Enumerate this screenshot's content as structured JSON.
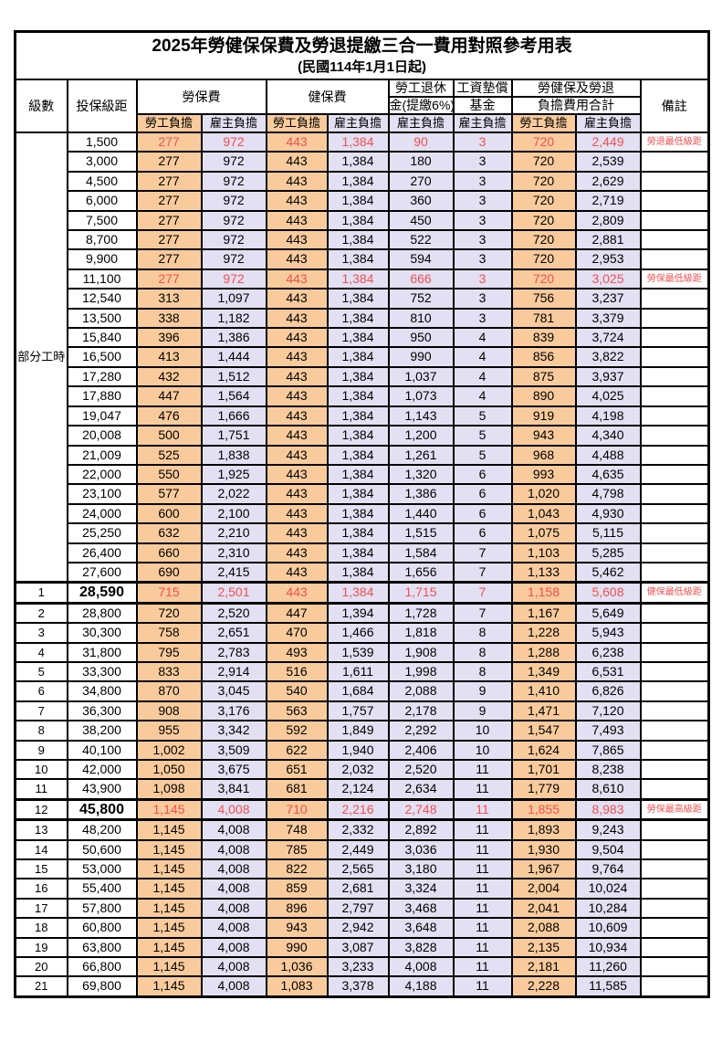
{
  "colors": {
    "employee_bg": "#F9CB9C",
    "employer_bg": "#E2E0F2",
    "highlight_red": "#F25050",
    "border": "#000000"
  },
  "title": {
    "line1": "2025年勞健保保費及勞退提繳三合一費用對照參考用表",
    "line2": "(民國114年1月1日起)"
  },
  "header": {
    "level": "級數",
    "bracket": "投保級距",
    "labor_ins": "勞保費",
    "health_ins": "健保費",
    "pension_line1": "勞工退休",
    "pension_line2": "金(提繳6%)",
    "wage_fund_line1": "工資墊償",
    "wage_fund_line2": "基金",
    "total_line1": "勞健保及勞退",
    "total_line2": "負擔費用合計",
    "remark": "備註",
    "employee": "勞工負擔",
    "employer": "雇主負擔"
  },
  "table": {
    "group": {
      "label": "部分工時",
      "span": 23
    },
    "columns": [
      "level",
      "bracket",
      "labor_employee",
      "labor_employer",
      "health_employee",
      "health_employer",
      "pension_employer",
      "wage_fund_employer",
      "total_employee",
      "total_employer",
      "remark"
    ],
    "rows": [
      {
        "level": "",
        "bracket": "1,500",
        "values": [
          "277",
          "972",
          "443",
          "1,384",
          "90",
          "3",
          "720",
          "2,449"
        ],
        "remark": "勞退最低級距",
        "red": true,
        "emph": false
      },
      {
        "level": "",
        "bracket": "3,000",
        "values": [
          "277",
          "972",
          "443",
          "1,384",
          "180",
          "3",
          "720",
          "2,539"
        ],
        "remark": "",
        "red": false,
        "emph": false
      },
      {
        "level": "",
        "bracket": "4,500",
        "values": [
          "277",
          "972",
          "443",
          "1,384",
          "270",
          "3",
          "720",
          "2,629"
        ],
        "remark": "",
        "red": false,
        "emph": false
      },
      {
        "level": "",
        "bracket": "6,000",
        "values": [
          "277",
          "972",
          "443",
          "1,384",
          "360",
          "3",
          "720",
          "2,719"
        ],
        "remark": "",
        "red": false,
        "emph": false
      },
      {
        "level": "",
        "bracket": "7,500",
        "values": [
          "277",
          "972",
          "443",
          "1,384",
          "450",
          "3",
          "720",
          "2,809"
        ],
        "remark": "",
        "red": false,
        "emph": false
      },
      {
        "level": "",
        "bracket": "8,700",
        "values": [
          "277",
          "972",
          "443",
          "1,384",
          "522",
          "3",
          "720",
          "2,881"
        ],
        "remark": "",
        "red": false,
        "emph": false
      },
      {
        "level": "",
        "bracket": "9,900",
        "values": [
          "277",
          "972",
          "443",
          "1,384",
          "594",
          "3",
          "720",
          "2,953"
        ],
        "remark": "",
        "red": false,
        "emph": false
      },
      {
        "level": "",
        "bracket": "11,100",
        "values": [
          "277",
          "972",
          "443",
          "1,384",
          "666",
          "3",
          "720",
          "3,025"
        ],
        "remark": "勞保最低級距",
        "red": true,
        "emph": false
      },
      {
        "level": "",
        "bracket": "12,540",
        "values": [
          "313",
          "1,097",
          "443",
          "1,384",
          "752",
          "3",
          "756",
          "3,237"
        ],
        "remark": "",
        "red": false,
        "emph": false
      },
      {
        "level": "",
        "bracket": "13,500",
        "values": [
          "338",
          "1,182",
          "443",
          "1,384",
          "810",
          "3",
          "781",
          "3,379"
        ],
        "remark": "",
        "red": false,
        "emph": false
      },
      {
        "level": "",
        "bracket": "15,840",
        "values": [
          "396",
          "1,386",
          "443",
          "1,384",
          "950",
          "4",
          "839",
          "3,724"
        ],
        "remark": "",
        "red": false,
        "emph": false
      },
      {
        "level": "",
        "bracket": "16,500",
        "values": [
          "413",
          "1,444",
          "443",
          "1,384",
          "990",
          "4",
          "856",
          "3,822"
        ],
        "remark": "",
        "red": false,
        "emph": false
      },
      {
        "level": "",
        "bracket": "17,280",
        "values": [
          "432",
          "1,512",
          "443",
          "1,384",
          "1,037",
          "4",
          "875",
          "3,937"
        ],
        "remark": "",
        "red": false,
        "emph": false
      },
      {
        "level": "",
        "bracket": "17,880",
        "values": [
          "447",
          "1,564",
          "443",
          "1,384",
          "1,073",
          "4",
          "890",
          "4,025"
        ],
        "remark": "",
        "red": false,
        "emph": false
      },
      {
        "level": "",
        "bracket": "19,047",
        "values": [
          "476",
          "1,666",
          "443",
          "1,384",
          "1,143",
          "5",
          "919",
          "4,198"
        ],
        "remark": "",
        "red": false,
        "emph": false
      },
      {
        "level": "",
        "bracket": "20,008",
        "values": [
          "500",
          "1,751",
          "443",
          "1,384",
          "1,200",
          "5",
          "943",
          "4,340"
        ],
        "remark": "",
        "red": false,
        "emph": false
      },
      {
        "level": "",
        "bracket": "21,009",
        "values": [
          "525",
          "1,838",
          "443",
          "1,384",
          "1,261",
          "5",
          "968",
          "4,488"
        ],
        "remark": "",
        "red": false,
        "emph": false
      },
      {
        "level": "",
        "bracket": "22,000",
        "values": [
          "550",
          "1,925",
          "443",
          "1,384",
          "1,320",
          "6",
          "993",
          "4,635"
        ],
        "remark": "",
        "red": false,
        "emph": false
      },
      {
        "level": "",
        "bracket": "23,100",
        "values": [
          "577",
          "2,022",
          "443",
          "1,384",
          "1,386",
          "6",
          "1,020",
          "4,798"
        ],
        "remark": "",
        "red": false,
        "emph": false
      },
      {
        "level": "",
        "bracket": "24,000",
        "values": [
          "600",
          "2,100",
          "443",
          "1,384",
          "1,440",
          "6",
          "1,043",
          "4,930"
        ],
        "remark": "",
        "red": false,
        "emph": false
      },
      {
        "level": "",
        "bracket": "25,250",
        "values": [
          "632",
          "2,210",
          "443",
          "1,384",
          "1,515",
          "6",
          "1,075",
          "5,115"
        ],
        "remark": "",
        "red": false,
        "emph": false
      },
      {
        "level": "",
        "bracket": "26,400",
        "values": [
          "660",
          "2,310",
          "443",
          "1,384",
          "1,584",
          "7",
          "1,103",
          "5,285"
        ],
        "remark": "",
        "red": false,
        "emph": false
      },
      {
        "level": "",
        "bracket": "27,600",
        "values": [
          "690",
          "2,415",
          "443",
          "1,384",
          "1,656",
          "7",
          "1,133",
          "5,462"
        ],
        "remark": "",
        "red": false,
        "emph": false
      },
      {
        "level": "1",
        "bracket": "28,590",
        "values": [
          "715",
          "2,501",
          "443",
          "1,384",
          "1,715",
          "7",
          "1,158",
          "5,608"
        ],
        "remark": "健保最低級距",
        "red": true,
        "emph": true
      },
      {
        "level": "2",
        "bracket": "28,800",
        "values": [
          "720",
          "2,520",
          "447",
          "1,394",
          "1,728",
          "7",
          "1,167",
          "5,649"
        ],
        "remark": "",
        "red": false,
        "emph": false
      },
      {
        "level": "3",
        "bracket": "30,300",
        "values": [
          "758",
          "2,651",
          "470",
          "1,466",
          "1,818",
          "8",
          "1,228",
          "5,943"
        ],
        "remark": "",
        "red": false,
        "emph": false
      },
      {
        "level": "4",
        "bracket": "31,800",
        "values": [
          "795",
          "2,783",
          "493",
          "1,539",
          "1,908",
          "8",
          "1,288",
          "6,238"
        ],
        "remark": "",
        "red": false,
        "emph": false
      },
      {
        "level": "5",
        "bracket": "33,300",
        "values": [
          "833",
          "2,914",
          "516",
          "1,611",
          "1,998",
          "8",
          "1,349",
          "6,531"
        ],
        "remark": "",
        "red": false,
        "emph": false
      },
      {
        "level": "6",
        "bracket": "34,800",
        "values": [
          "870",
          "3,045",
          "540",
          "1,684",
          "2,088",
          "9",
          "1,410",
          "6,826"
        ],
        "remark": "",
        "red": false,
        "emph": false
      },
      {
        "level": "7",
        "bracket": "36,300",
        "values": [
          "908",
          "3,176",
          "563",
          "1,757",
          "2,178",
          "9",
          "1,471",
          "7,120"
        ],
        "remark": "",
        "red": false,
        "emph": false
      },
      {
        "level": "8",
        "bracket": "38,200",
        "values": [
          "955",
          "3,342",
          "592",
          "1,849",
          "2,292",
          "10",
          "1,547",
          "7,493"
        ],
        "remark": "",
        "red": false,
        "emph": false
      },
      {
        "level": "9",
        "bracket": "40,100",
        "values": [
          "1,002",
          "3,509",
          "622",
          "1,940",
          "2,406",
          "10",
          "1,624",
          "7,865"
        ],
        "remark": "",
        "red": false,
        "emph": false
      },
      {
        "level": "10",
        "bracket": "42,000",
        "values": [
          "1,050",
          "3,675",
          "651",
          "2,032",
          "2,520",
          "11",
          "1,701",
          "8,238"
        ],
        "remark": "",
        "red": false,
        "emph": false
      },
      {
        "level": "11",
        "bracket": "43,900",
        "values": [
          "1,098",
          "3,841",
          "681",
          "2,124",
          "2,634",
          "11",
          "1,779",
          "8,610"
        ],
        "remark": "",
        "red": false,
        "emph": false
      },
      {
        "level": "12",
        "bracket": "45,800",
        "values": [
          "1,145",
          "4,008",
          "710",
          "2,216",
          "2,748",
          "11",
          "1,855",
          "8,983"
        ],
        "remark": "勞保最高級距",
        "red": true,
        "emph": true
      },
      {
        "level": "13",
        "bracket": "48,200",
        "values": [
          "1,145",
          "4,008",
          "748",
          "2,332",
          "2,892",
          "11",
          "1,893",
          "9,243"
        ],
        "remark": "",
        "red": false,
        "emph": false
      },
      {
        "level": "14",
        "bracket": "50,600",
        "values": [
          "1,145",
          "4,008",
          "785",
          "2,449",
          "3,036",
          "11",
          "1,930",
          "9,504"
        ],
        "remark": "",
        "red": false,
        "emph": false
      },
      {
        "level": "15",
        "bracket": "53,000",
        "values": [
          "1,145",
          "4,008",
          "822",
          "2,565",
          "3,180",
          "11",
          "1,967",
          "9,764"
        ],
        "remark": "",
        "red": false,
        "emph": false
      },
      {
        "level": "16",
        "bracket": "55,400",
        "values": [
          "1,145",
          "4,008",
          "859",
          "2,681",
          "3,324",
          "11",
          "2,004",
          "10,024"
        ],
        "remark": "",
        "red": false,
        "emph": false
      },
      {
        "level": "17",
        "bracket": "57,800",
        "values": [
          "1,145",
          "4,008",
          "896",
          "2,797",
          "3,468",
          "11",
          "2,041",
          "10,284"
        ],
        "remark": "",
        "red": false,
        "emph": false
      },
      {
        "level": "18",
        "bracket": "60,800",
        "values": [
          "1,145",
          "4,008",
          "943",
          "2,942",
          "3,648",
          "11",
          "2,088",
          "10,609"
        ],
        "remark": "",
        "red": false,
        "emph": false
      },
      {
        "level": "19",
        "bracket": "63,800",
        "values": [
          "1,145",
          "4,008",
          "990",
          "3,087",
          "3,828",
          "11",
          "2,135",
          "10,934"
        ],
        "remark": "",
        "red": false,
        "emph": false
      },
      {
        "level": "20",
        "bracket": "66,800",
        "values": [
          "1,145",
          "4,008",
          "1,036",
          "3,233",
          "4,008",
          "11",
          "2,181",
          "11,260"
        ],
        "remark": "",
        "red": false,
        "emph": false
      },
      {
        "level": "21",
        "bracket": "69,800",
        "values": [
          "1,145",
          "4,008",
          "1,083",
          "3,378",
          "4,188",
          "11",
          "2,228",
          "11,585"
        ],
        "remark": "",
        "red": false,
        "emph": false
      }
    ]
  }
}
